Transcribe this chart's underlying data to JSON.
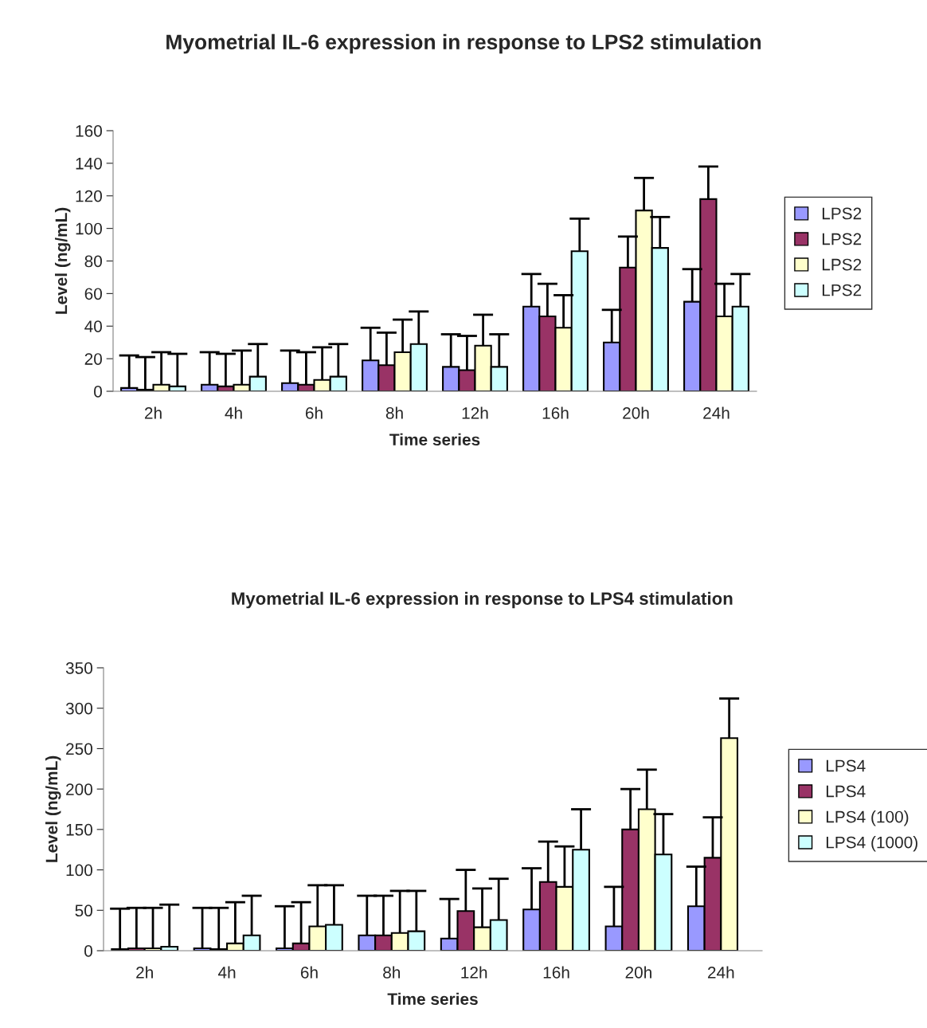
{
  "chart_data": [
    {
      "type": "bar",
      "title": "Myometrial IL-6 expression in response to LPS2 stimulation",
      "xlabel": "Time series",
      "ylabel": "Level (ng/mL)",
      "categories": [
        "2h",
        "4h",
        "6h",
        "8h",
        "12h",
        "16h",
        "20h",
        "24h"
      ],
      "ylim": [
        0,
        160
      ],
      "yticks": [
        0,
        20,
        40,
        60,
        80,
        100,
        120,
        140,
        160
      ],
      "grid": false,
      "legend": "right",
      "series": [
        {
          "name": "LPS2",
          "color": "#9999ff",
          "values": [
            2,
            4,
            5,
            19,
            15,
            52,
            30,
            55
          ],
          "errors": [
            [
              2,
              22
            ],
            [
              4,
              24
            ],
            [
              5,
              25
            ],
            [
              19,
              39
            ],
            [
              15,
              35
            ],
            [
              52,
              72
            ],
            [
              30,
              50
            ],
            [
              55,
              75
            ]
          ]
        },
        {
          "name": "LPS2",
          "color": "#993366",
          "values": [
            1,
            3,
            4,
            16,
            13,
            46,
            76,
            118
          ],
          "errors": [
            [
              1,
              21
            ],
            [
              3,
              23
            ],
            [
              4,
              24
            ],
            [
              16,
              36
            ],
            [
              13,
              34
            ],
            [
              46,
              66
            ],
            [
              76,
              95
            ],
            [
              118,
              138
            ]
          ]
        },
        {
          "name": "LPS2",
          "color": "#ffffcc",
          "values": [
            4,
            4,
            7,
            24,
            28,
            39,
            111,
            46
          ],
          "errors": [
            [
              4,
              24
            ],
            [
              4,
              25
            ],
            [
              7,
              27
            ],
            [
              24,
              44
            ],
            [
              28,
              47
            ],
            [
              39,
              59
            ],
            [
              111,
              131
            ],
            [
              46,
              66
            ]
          ]
        },
        {
          "name": "LPS2",
          "color": "#ccffff",
          "values": [
            3,
            9,
            9,
            29,
            15,
            86,
            88,
            52
          ],
          "errors": [
            [
              3,
              23
            ],
            [
              9,
              29
            ],
            [
              9,
              29
            ],
            [
              29,
              49
            ],
            [
              15,
              35
            ],
            [
              86,
              106
            ],
            [
              88,
              107
            ],
            [
              52,
              72
            ]
          ]
        }
      ]
    },
    {
      "type": "bar",
      "title": "Myometrial IL-6 expression in response to LPS4 stimulation",
      "xlabel": "Time series",
      "ylabel": "Level (ng/mL)",
      "categories": [
        "2h",
        "4h",
        "6h",
        "8h",
        "12h",
        "16h",
        "20h",
        "24h"
      ],
      "ylim": [
        0,
        350
      ],
      "yticks": [
        0,
        50,
        100,
        150,
        200,
        250,
        300,
        350
      ],
      "grid": false,
      "legend": "right",
      "series": [
        {
          "name": "LPS4",
          "color": "#9999ff",
          "values": [
            2,
            3,
            3,
            19,
            15,
            51,
            30,
            55
          ],
          "errors": [
            [
              2,
              52
            ],
            [
              3,
              53
            ],
            [
              3,
              55
            ],
            [
              19,
              68
            ],
            [
              15,
              64
            ],
            [
              51,
              102
            ],
            [
              30,
              79
            ],
            [
              55,
              104
            ]
          ]
        },
        {
          "name": "LPS4",
          "color": "#993366",
          "values": [
            3,
            2,
            9,
            19,
            49,
            85,
            150,
            115
          ],
          "errors": [
            [
              3,
              53
            ],
            [
              2,
              53
            ],
            [
              9,
              60
            ],
            [
              19,
              68
            ],
            [
              49,
              100
            ],
            [
              85,
              135
            ],
            [
              150,
              200
            ],
            [
              115,
              165
            ]
          ]
        },
        {
          "name": "LPS4 (100)",
          "color": "#ffffcc",
          "values": [
            3,
            9,
            30,
            22,
            29,
            79,
            175,
            263
          ],
          "errors": [
            [
              3,
              53
            ],
            [
              9,
              60
            ],
            [
              30,
              81
            ],
            [
              22,
              74
            ],
            [
              29,
              77
            ],
            [
              79,
              129
            ],
            [
              175,
              224
            ],
            [
              263,
              312
            ]
          ]
        },
        {
          "name": "LPS4 (1000)",
          "color": "#ccffff",
          "values": [
            5,
            19,
            32,
            24,
            38,
            125,
            119,
            null
          ],
          "errors": [
            [
              5,
              57
            ],
            [
              19,
              68
            ],
            [
              32,
              81
            ],
            [
              24,
              74
            ],
            [
              38,
              89
            ],
            [
              125,
              175
            ],
            [
              119,
              169
            ],
            null
          ]
        }
      ]
    }
  ]
}
